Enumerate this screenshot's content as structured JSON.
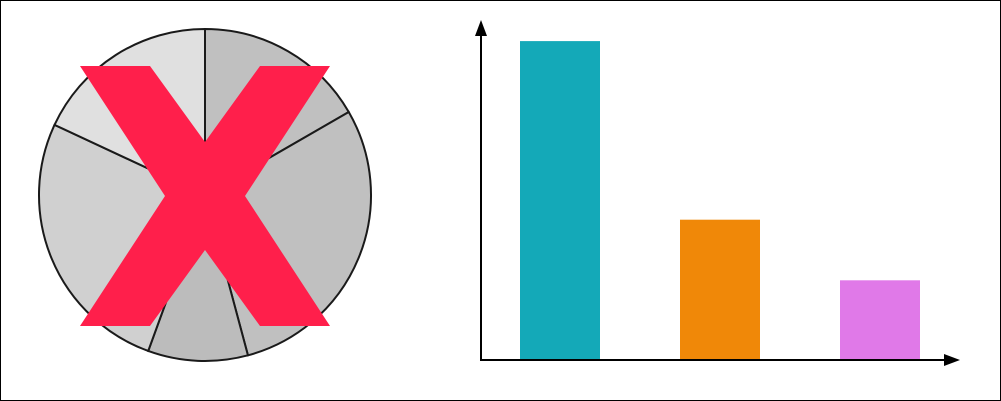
{
  "colors": {
    "frame": "#000000",
    "pie_outline": "#1a1a1a",
    "pie_slices": [
      "#c0c0c0",
      "#c0c0c0",
      "#bcbcbc",
      "#d0d0d0",
      "#e0e0e0"
    ],
    "cross": "#ff1f4b",
    "bars": [
      "#14a9b8",
      "#f08808",
      "#e079e8"
    ],
    "axis": "#000000"
  },
  "pie_chart": {
    "slices_deg": [
      60,
      105,
      35,
      95,
      65
    ],
    "crossed_out": true
  },
  "chart_data": {
    "type": "bar",
    "categories": [
      "",
      "",
      ""
    ],
    "values": [
      100,
      44,
      25
    ],
    "ylim": [
      0,
      106
    ],
    "grid": false,
    "legend": "none"
  }
}
